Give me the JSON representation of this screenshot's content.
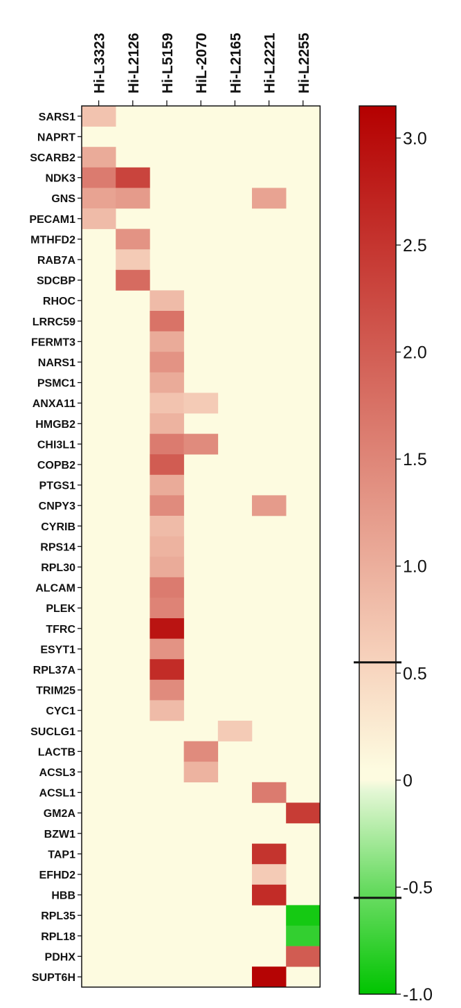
{
  "chart_data": {
    "type": "heatmap",
    "title": "",
    "xlabel": "",
    "ylabel": "",
    "columns": [
      "Hi-L3323",
      "Hi-L2126",
      "Hi-L5159",
      "HiL-2070",
      "Hi-L2165",
      "Hi-L2221",
      "Hi-L2255"
    ],
    "rows": [
      "SARS1",
      "NAPRT",
      "SCARB2",
      "NDK3",
      "GNS",
      "PECAM1",
      "MTHFD2",
      "RAB7A",
      "SDCBP",
      "RHOC",
      "LRRC59",
      "FERMT3",
      "NARS1",
      "PSMC1",
      "ANXA11",
      "HMGB2",
      "CHI3L1",
      "COPB2",
      "PTGS1",
      "CNPY3",
      "CYRIB",
      "RPS14",
      "RPL30",
      "ALCAM",
      "PLEK",
      "TFRC",
      "ESYT1",
      "RPL37A",
      "TRIM25",
      "CYC1",
      "SUCLG1",
      "LACTB",
      "ACSL3",
      "ACSL1",
      "GM2A",
      "BZW1",
      "TAP1",
      "EFHD2",
      "HBB",
      "RPL35",
      "RPL18",
      "PDHX",
      "SUPT6H"
    ],
    "values": [
      [
        0.7,
        0,
        0,
        0,
        0,
        0,
        0
      ],
      [
        0,
        0,
        0,
        0,
        0,
        0,
        0
      ],
      [
        1.0,
        0,
        0,
        0,
        0,
        0,
        0
      ],
      [
        1.6,
        2.3,
        0,
        0,
        0,
        0,
        0
      ],
      [
        1.1,
        1.2,
        0,
        0,
        0,
        1.1,
        0
      ],
      [
        0.8,
        0,
        0,
        0,
        0,
        0,
        0
      ],
      [
        0,
        1.3,
        0,
        0,
        0,
        0,
        0
      ],
      [
        0,
        0.6,
        0,
        0,
        0,
        0,
        0
      ],
      [
        0,
        1.8,
        0,
        0,
        0,
        0,
        0
      ],
      [
        0,
        0,
        0.8,
        0,
        0,
        0,
        0
      ],
      [
        0,
        0,
        1.7,
        0,
        0,
        0,
        0
      ],
      [
        0,
        0,
        1.0,
        0,
        0,
        0,
        0
      ],
      [
        0,
        0,
        1.3,
        0,
        0,
        0,
        0
      ],
      [
        0,
        0,
        1.0,
        0,
        0,
        0,
        0
      ],
      [
        0,
        0,
        0.7,
        0.6,
        0,
        0,
        0
      ],
      [
        0,
        0,
        0.9,
        0,
        0,
        0,
        0
      ],
      [
        0,
        0,
        1.6,
        1.4,
        0,
        0,
        0
      ],
      [
        0,
        0,
        2.0,
        0,
        0,
        0,
        0
      ],
      [
        0,
        0,
        1.0,
        0,
        0,
        0,
        0
      ],
      [
        0,
        0,
        1.4,
        0,
        0,
        1.2,
        0
      ],
      [
        0,
        0,
        0.8,
        0,
        0,
        0,
        0
      ],
      [
        0,
        0,
        0.9,
        0,
        0,
        0,
        0
      ],
      [
        0,
        0,
        1.0,
        0,
        0,
        0,
        0
      ],
      [
        0,
        0,
        1.6,
        0,
        0,
        0,
        0
      ],
      [
        0,
        0,
        1.5,
        0,
        0,
        0,
        0
      ],
      [
        0,
        0,
        2.9,
        0,
        0,
        0,
        0
      ],
      [
        0,
        0,
        1.3,
        0,
        0,
        0,
        0
      ],
      [
        0,
        0,
        2.6,
        0,
        0,
        0,
        0
      ],
      [
        0,
        0,
        1.4,
        0,
        0,
        0,
        0
      ],
      [
        0,
        0,
        0.8,
        0,
        0,
        0,
        0
      ],
      [
        0,
        0,
        0,
        0,
        0.6,
        0,
        0
      ],
      [
        0,
        0,
        0,
        1.4,
        0,
        0,
        0
      ],
      [
        0,
        0,
        0,
        0.9,
        0,
        0,
        0
      ],
      [
        0,
        0,
        0,
        0,
        0,
        1.6,
        0
      ],
      [
        0,
        0,
        0,
        0,
        0,
        0,
        2.4
      ],
      [
        0,
        0,
        0,
        0,
        0,
        0,
        0
      ],
      [
        0,
        0,
        0,
        0,
        0,
        2.5,
        0
      ],
      [
        0,
        0,
        0,
        0,
        0,
        0.6,
        0
      ],
      [
        0,
        0,
        0,
        0,
        0,
        2.6,
        0
      ],
      [
        0,
        0,
        0,
        0,
        0,
        0,
        -0.9
      ],
      [
        0,
        0,
        0,
        0,
        0,
        0,
        -0.75
      ],
      [
        0,
        0,
        0,
        0,
        0,
        0,
        2.0
      ],
      [
        0,
        0,
        0,
        0,
        0,
        3.1,
        0
      ]
    ],
    "colorbar": {
      "ticks": [
        "3.0",
        "2.5",
        "2.0",
        "1.5",
        "1.0",
        "0.5",
        "0",
        "-0.5",
        "-1.0"
      ],
      "tick_values": [
        3.0,
        2.5,
        2.0,
        1.5,
        1.0,
        0.5,
        0,
        -0.5,
        -1.0
      ],
      "threshold_lines": [
        0.55,
        -0.55
      ],
      "min": -1.0,
      "max": 3.15
    },
    "colors": {
      "background": "#fdfbe0",
      "neutral": "#fdfbe0",
      "positive_low": "#f7d3bd",
      "positive_high": "#b40000",
      "negative_low": "#e4f7d5",
      "negative_high": "#00c400"
    }
  }
}
